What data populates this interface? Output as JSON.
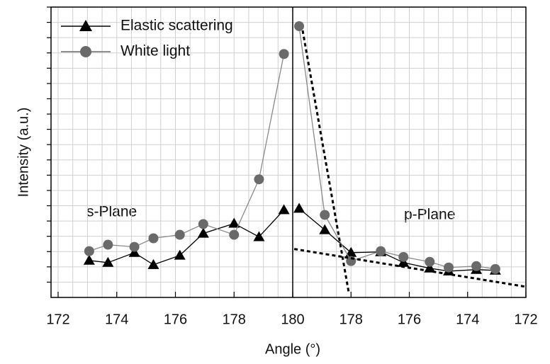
{
  "chart_data": [
    {
      "type": "line",
      "annotation": "s-Plane",
      "x_label": "Angle (°)",
      "y_label": "Intensity (a.u.)",
      "xlim": [
        172,
        180
      ],
      "xticks": [
        172,
        174,
        176,
        178,
        180
      ],
      "ylim": [
        0,
        19
      ],
      "yticks": [
        1,
        2,
        3,
        4,
        5,
        6,
        7,
        8,
        9,
        10,
        11,
        12,
        13,
        14,
        15,
        16,
        17,
        18,
        19
      ],
      "grid": true,
      "legend": "upper left",
      "x": [
        173.06,
        173.7,
        174.6,
        175.25,
        176.15,
        176.95,
        178.0,
        178.85,
        179.7
      ],
      "series": [
        {
          "name": "Elastic scattering",
          "color": "#000000",
          "marker": "triangle",
          "values": [
            2.42,
            2.28,
            2.93,
            2.14,
            2.75,
            4.19,
            4.84,
            3.96,
            5.73
          ]
        },
        {
          "name": "White light",
          "color": "#6a6a6a",
          "marker": "circle",
          "values": [
            3.03,
            3.45,
            3.31,
            3.87,
            4.1,
            4.8,
            4.1,
            7.73,
            15.93
          ]
        }
      ]
    },
    {
      "type": "line",
      "annotation": "p-Plane",
      "xlim": [
        180,
        172
      ],
      "xticks": [
        178,
        176,
        174,
        172
      ],
      "ylim": [
        0,
        19
      ],
      "x": [
        179.78,
        178.9,
        178.0,
        176.98,
        176.2,
        175.3,
        174.65,
        173.7,
        173.05
      ],
      "series": [
        {
          "color": "#000000",
          "marker": "triangle",
          "values": [
            5.82,
            4.42,
            2.93,
            2.98,
            2.28,
            1.91,
            1.72,
            1.82,
            1.77
          ]
        },
        {
          "color": "#6a6a6a",
          "marker": "circle",
          "values": [
            17.75,
            5.4,
            2.38,
            3.03,
            2.65,
            2.33,
            1.96,
            2.05,
            1.86
          ]
        },
        {
          "color": "#000000",
          "dashed": true,
          "x": [
            179.66,
            178.07
          ],
          "values": [
            17.47,
            0.23
          ]
        },
        {
          "color": "#000000",
          "dashed": true,
          "x": [
            179.95,
            172.0
          ],
          "values": [
            3.17,
            0.7
          ]
        }
      ]
    }
  ]
}
